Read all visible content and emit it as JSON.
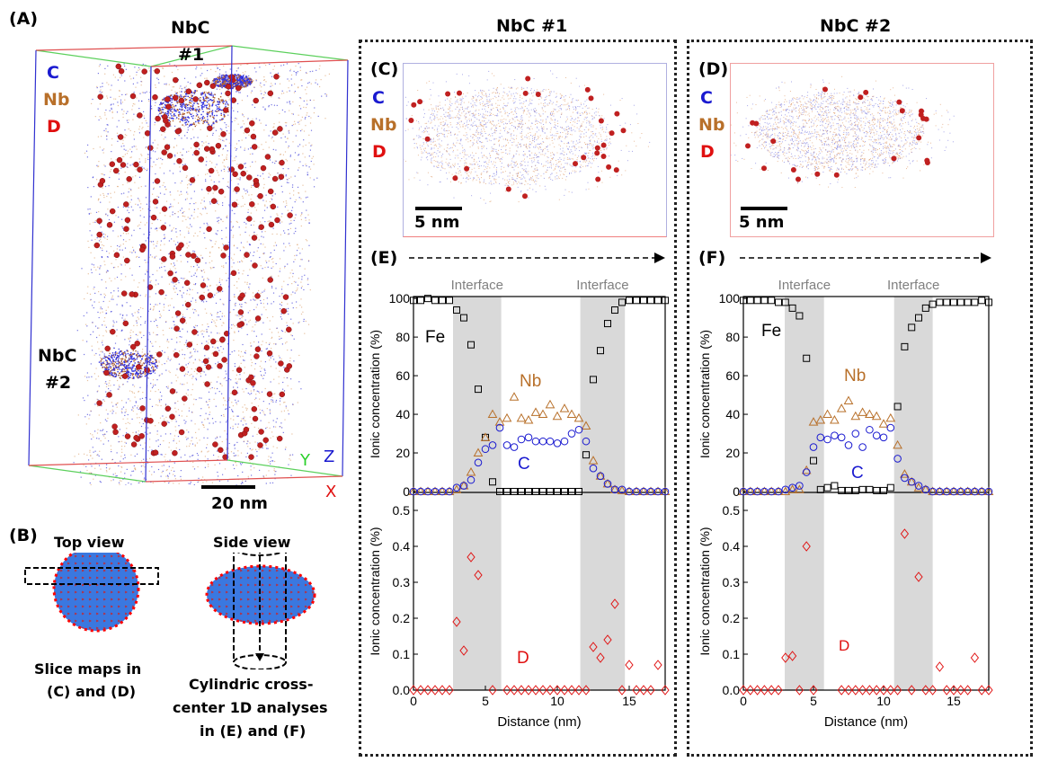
{
  "panels": {
    "A": {
      "label": "(A)",
      "precipitate1": [
        "NbC",
        "#1"
      ],
      "precipitate2": [
        "NbC",
        "#2"
      ],
      "legend": [
        "C",
        "Nb",
        "D"
      ],
      "scale_bar": "20 nm",
      "axes": [
        "Y",
        "Z",
        "X"
      ]
    },
    "B": {
      "label": "(B)",
      "top_view": "Top view",
      "side_view": "Side view",
      "top_caption": [
        "Slice maps in",
        "(C) and (D)"
      ],
      "side_caption": [
        "Cylindric cross-",
        "center 1D analyses",
        "in (E) and (F)"
      ]
    },
    "C": {
      "label": "(C)",
      "legend": [
        "C",
        "Nb",
        "D"
      ],
      "scale_bar": "5 nm"
    },
    "D": {
      "label": "(D)",
      "legend": [
        "C",
        "Nb",
        "D"
      ],
      "scale_bar": "5 nm"
    },
    "E": {
      "label": "(E)"
    },
    "F": {
      "label": "(F)"
    }
  },
  "columns": {
    "left_title": "NbC #1",
    "right_title": "NbC #2"
  },
  "colors": {
    "C": "#1a1ad0",
    "Nb": "#b8702a",
    "D": "#e01010",
    "Fe": "#000000",
    "interface_band": "#d9d9d9"
  },
  "chart_data": [
    {
      "type": "scatter",
      "panel": "E",
      "title": "",
      "xlabel": "Distance (nm)",
      "ylabel": "Ionic concentration (%)",
      "xlim": [
        0,
        17.5
      ],
      "xticks": [
        0,
        5,
        10,
        15
      ],
      "top": {
        "ylim": [
          0,
          100
        ],
        "yticks": [
          0,
          20,
          40,
          60,
          80,
          100
        ],
        "band_label": "Interface",
        "interface_bands": [
          [
            2.75,
            6.1
          ],
          [
            11.6,
            14.7
          ]
        ],
        "x": [
          0,
          0.5,
          1,
          1.5,
          2,
          2.5,
          3,
          3.5,
          4,
          4.5,
          5,
          5.5,
          6,
          6.5,
          7,
          7.5,
          8,
          8.5,
          9,
          9.5,
          10,
          10.5,
          11,
          11.5,
          12,
          12.5,
          13,
          13.5,
          14,
          14.5,
          15,
          15.5,
          16,
          16.5,
          17,
          17.5
        ],
        "series": [
          {
            "name": "Fe",
            "marker": "square",
            "values": [
              99,
              99,
              100,
              99,
              99,
              99,
              94,
              90,
              76,
              53,
              28,
              5,
              0,
              0,
              0,
              0,
              0,
              0,
              0,
              0,
              0,
              0,
              0,
              0,
              19,
              58,
              73,
              87,
              94,
              98,
              99,
              99,
              99,
              99,
              99,
              99
            ]
          },
          {
            "name": "Nb",
            "marker": "triangle",
            "values": [
              0,
              0,
              0,
              0,
              0,
              0,
              1,
              3,
              10,
              20,
              28,
              40,
              36,
              38,
              49,
              38,
              37,
              41,
              40,
              45,
              39,
              43,
              40,
              38,
              34,
              16,
              8,
              4,
              1,
              0.5,
              0,
              0,
              0,
              0,
              0,
              0
            ]
          },
          {
            "name": "C",
            "marker": "circle",
            "values": [
              0,
              0,
              0,
              0,
              0,
              0,
              2,
              3,
              6,
              15,
              22,
              24,
              33,
              24,
              23,
              27,
              28,
              26,
              26,
              26,
              25,
              26,
              30,
              32,
              26,
              12,
              8,
              4,
              1,
              1,
              0,
              0,
              0,
              0,
              0,
              0
            ]
          }
        ]
      },
      "bottom": {
        "ylim": [
          0,
          0.55
        ],
        "yticks": [
          0.0,
          0.1,
          0.2,
          0.3,
          0.4,
          0.5
        ],
        "x": [
          0,
          0.5,
          1,
          1.5,
          2,
          2.5,
          3,
          3.5,
          4,
          4.5,
          5.5,
          6.5,
          7,
          7.5,
          8,
          8.5,
          9,
          9.5,
          10,
          10.5,
          11,
          11.5,
          12,
          12.5,
          13,
          13.5,
          14,
          14.5,
          15,
          15.5,
          16,
          16.5,
          17,
          17.5
        ],
        "series": [
          {
            "name": "D",
            "marker": "diamond",
            "values": [
              0,
              0,
              0,
              0,
              0,
              0,
              0.19,
              0.11,
              0.37,
              0.32,
              0,
              0,
              0,
              0,
              0,
              0,
              0,
              0,
              0,
              0,
              0,
              0,
              0,
              0.12,
              0.09,
              0.14,
              0.24,
              0,
              0.07,
              0,
              0,
              0,
              0.07,
              0
            ]
          }
        ]
      }
    },
    {
      "type": "scatter",
      "panel": "F",
      "title": "",
      "xlabel": "Distance (nm)",
      "ylabel": "Ionic concentration (%)",
      "xlim": [
        0,
        17.5
      ],
      "xticks": [
        0,
        5,
        10,
        15
      ],
      "top": {
        "ylim": [
          0,
          100
        ],
        "yticks": [
          0,
          20,
          40,
          60,
          80,
          100
        ],
        "band_label": "Interface",
        "interface_bands": [
          [
            2.95,
            5.75
          ],
          [
            10.75,
            13.5
          ]
        ],
        "x": [
          0,
          0.5,
          1,
          1.5,
          2,
          2.5,
          3,
          3.5,
          4,
          4.5,
          5,
          5.5,
          6,
          6.5,
          7,
          7.5,
          8,
          8.5,
          9,
          9.5,
          10,
          10.5,
          11,
          11.5,
          12,
          12.5,
          13,
          13.5,
          14,
          14.5,
          15,
          15.5,
          16,
          16.5,
          17,
          17.5
        ],
        "series": [
          {
            "name": "Fe",
            "marker": "square",
            "values": [
              99,
              99,
              99,
              99,
              99,
              98,
              98,
              95,
              91,
              69,
              16,
              1,
              2,
              3,
              0.5,
              0.5,
              0.5,
              1,
              1,
              0.5,
              0.5,
              2,
              44,
              75,
              85,
              90,
              95,
              97,
              98,
              98,
              98,
              98,
              98,
              98,
              99,
              98
            ]
          },
          {
            "name": "Nb",
            "marker": "triangle",
            "values": [
              0,
              0,
              0,
              0,
              0,
              0,
              0,
              1,
              1,
              11,
              36,
              37,
              40,
              37,
              43,
              47,
              39,
              41,
              40,
              39,
              35,
              38,
              24,
              9,
              5,
              2,
              1,
              0,
              0,
              0,
              0,
              0,
              0,
              0,
              0,
              0
            ]
          },
          {
            "name": "C",
            "marker": "circle",
            "values": [
              0,
              0,
              0,
              0,
              0,
              0,
              1,
              2,
              3,
              10,
              23,
              28,
              27,
              29,
              28,
              24,
              30,
              23,
              32,
              29,
              28,
              33,
              17,
              7,
              5,
              3,
              1,
              0,
              0,
              0,
              0,
              0,
              0,
              0,
              0,
              0
            ]
          }
        ]
      },
      "bottom": {
        "ylim": [
          0,
          0.55
        ],
        "yticks": [
          0.0,
          0.1,
          0.2,
          0.3,
          0.4,
          0.5
        ],
        "x": [
          0,
          0.5,
          1,
          1.5,
          2,
          2.5,
          3,
          3.5,
          4,
          4.5,
          5,
          7,
          7.5,
          8,
          8.5,
          9,
          9.5,
          10,
          10.5,
          11,
          11.5,
          12,
          12.5,
          13,
          13.5,
          14,
          14.5,
          15,
          15.5,
          16,
          16.5,
          17,
          17.5
        ],
        "series": [
          {
            "name": "D",
            "marker": "diamond",
            "values": [
              0,
              0,
              0,
              0,
              0,
              0,
              0.09,
              0.095,
              0,
              0.4,
              0,
              0,
              0,
              0,
              0,
              0,
              0,
              0,
              0,
              0,
              0.435,
              0,
              0.315,
              0,
              0,
              0.065,
              0,
              0,
              0,
              0,
              0.09,
              0,
              0
            ]
          }
        ]
      }
    }
  ]
}
